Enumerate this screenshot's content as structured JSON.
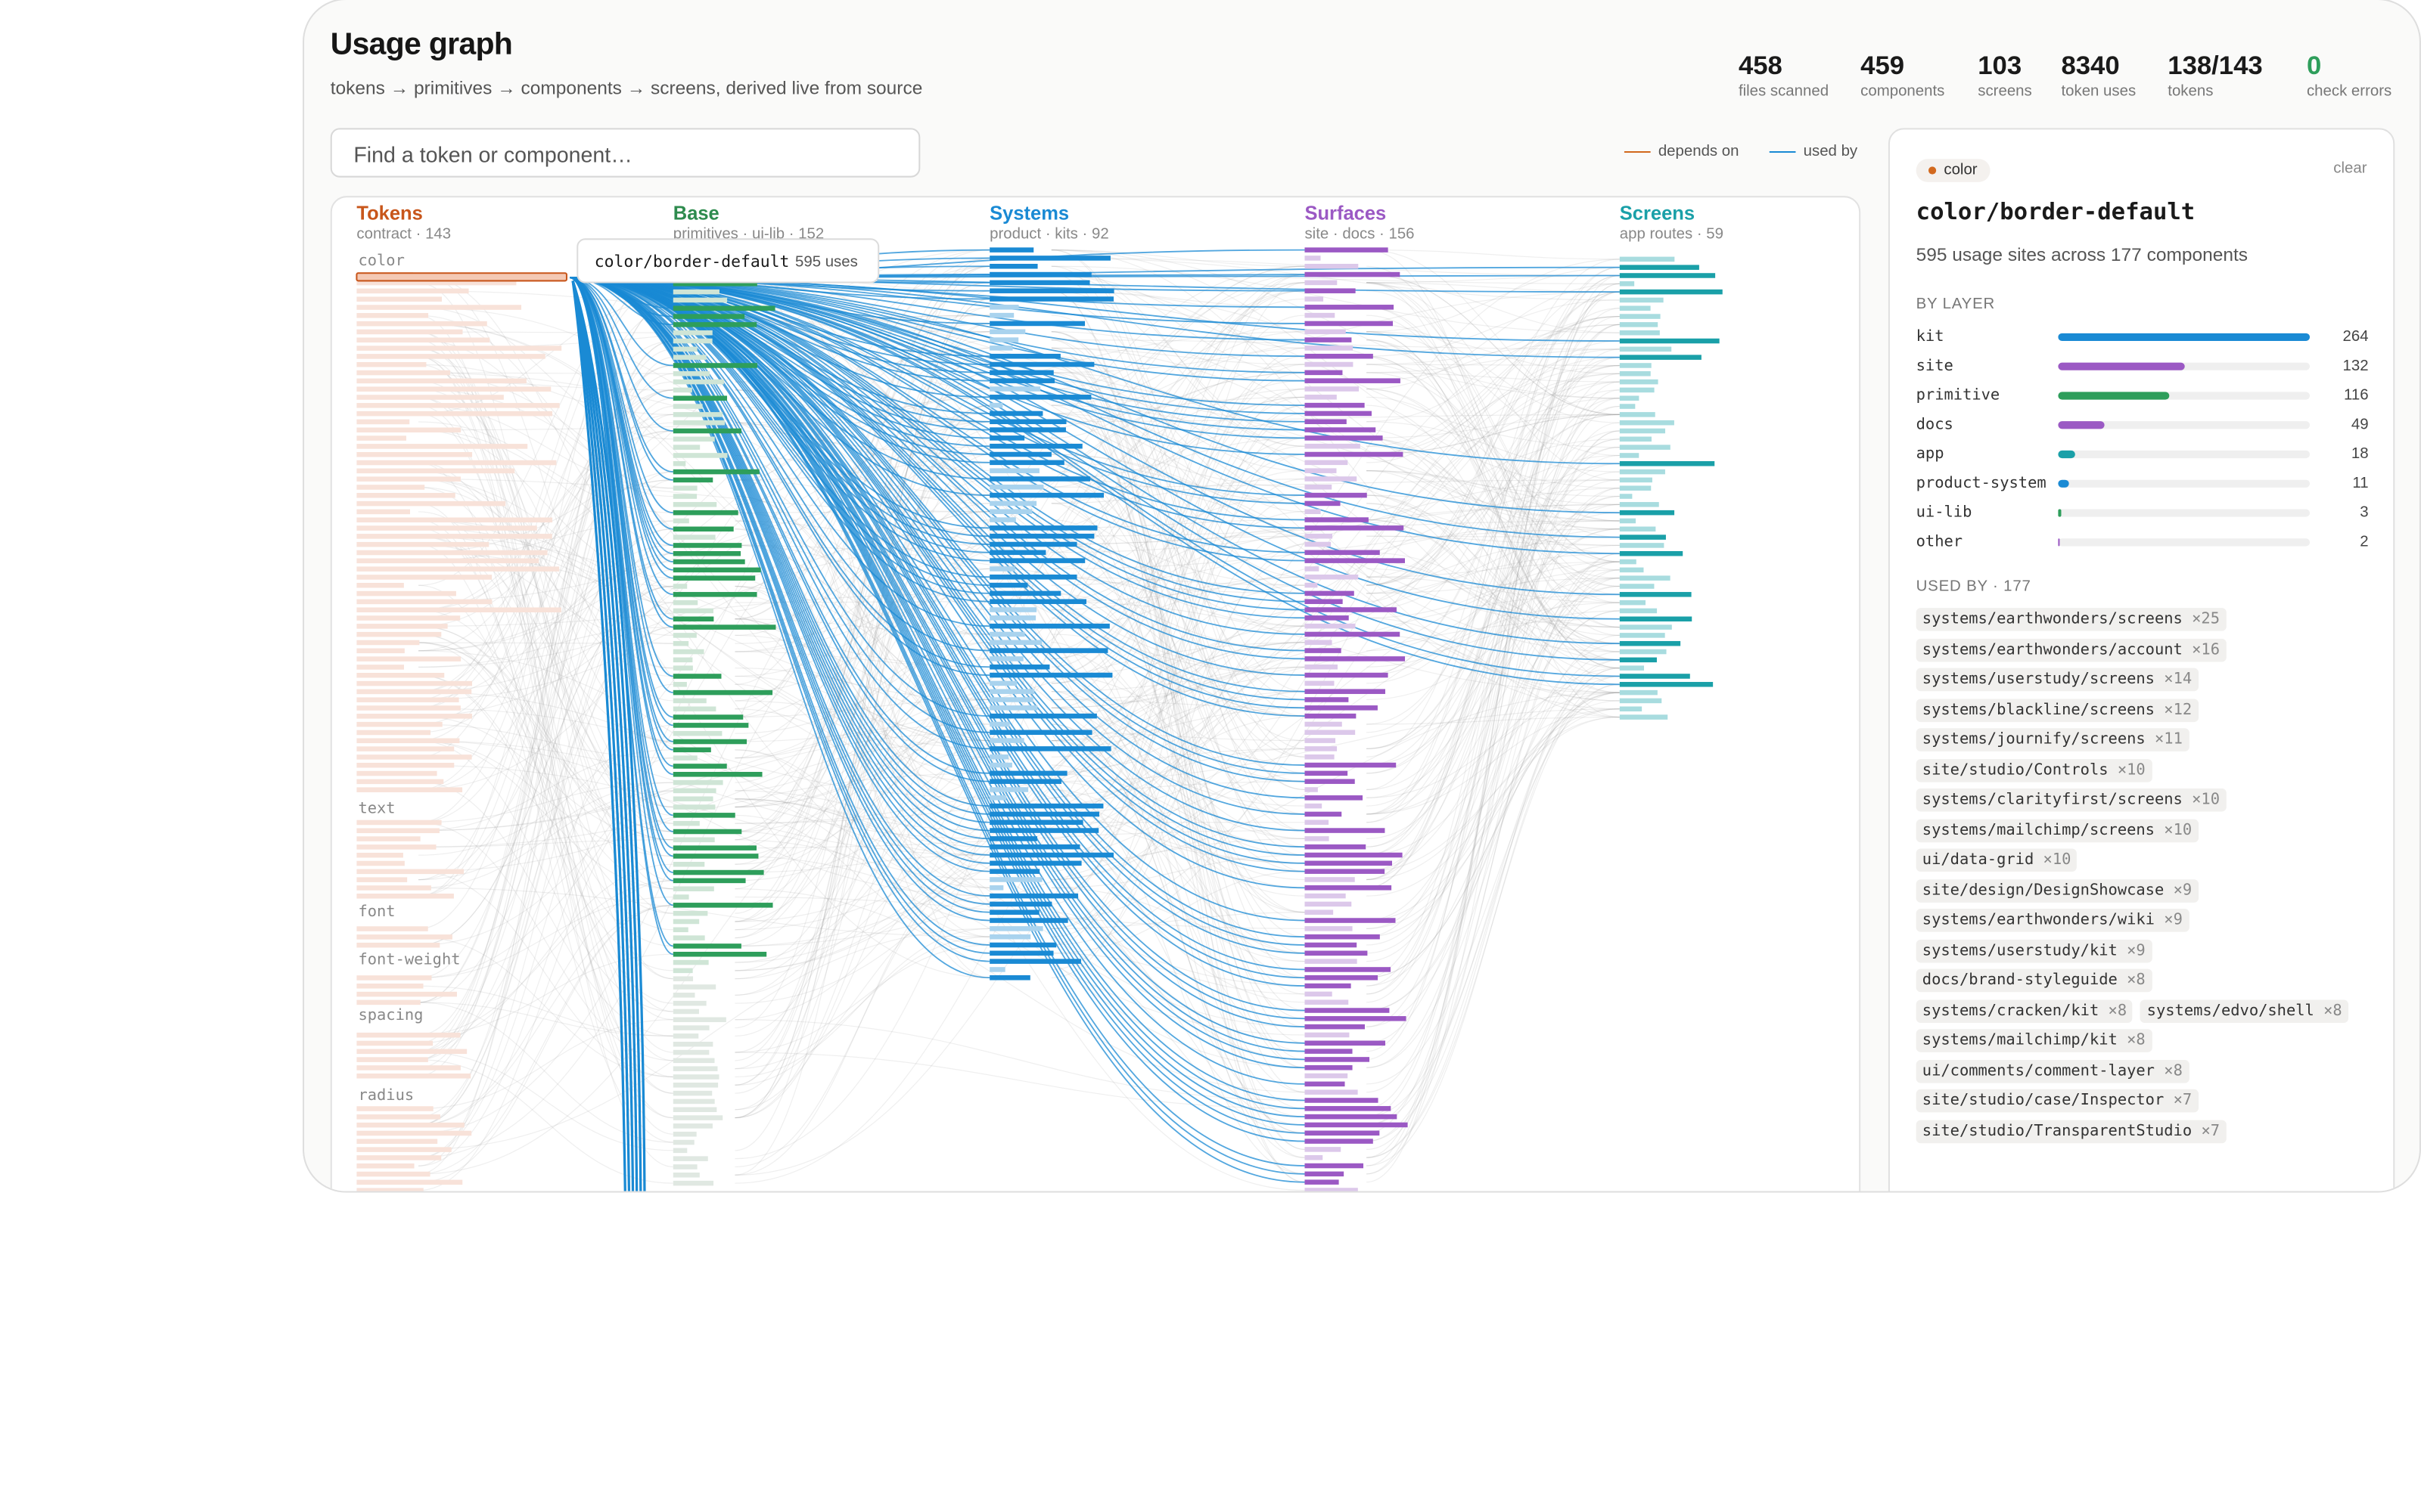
{
  "header": {
    "title": "Usage graph",
    "subtitle": "tokens → primitives → components → screens, derived live from source"
  },
  "stats": [
    {
      "value": 458,
      "label": "files scanned"
    },
    {
      "value": 459,
      "label": "components"
    },
    {
      "value": 103,
      "label": "screens"
    },
    {
      "value": 8340,
      "label": "token uses"
    },
    {
      "value": "138/143",
      "label": "tokens"
    },
    {
      "value": 0,
      "label": "check errors",
      "color": "#2e9e5b"
    }
  ],
  "search": {
    "placeholder": "Find a token or component…"
  },
  "legend": [
    {
      "label": "depends on",
      "color": "#d2691e"
    },
    {
      "label": "used by",
      "color": "#1a8ad4"
    }
  ],
  "columns": [
    {
      "name": "Tokens",
      "subtitle": "contract · 143",
      "color": "#c8561b"
    },
    {
      "name": "Base",
      "subtitle": "primitives · ui-lib · 152",
      "color": "#2e8b4e"
    },
    {
      "name": "Systems",
      "subtitle": "product · kits · 92",
      "color": "#1a8ad4"
    },
    {
      "name": "Surfaces",
      "subtitle": "site · docs · 156",
      "color": "#9b59c4"
    },
    {
      "name": "Screens",
      "subtitle": "app routes · 59",
      "color": "#1aa0a8"
    }
  ],
  "token_groups": [
    "color",
    "text",
    "font",
    "font-weight",
    "spacing",
    "radius"
  ],
  "tooltip": {
    "name": "color/border-default",
    "uses": "595 uses"
  },
  "panel": {
    "chip": "color",
    "clear": "clear",
    "title": "color/border-default",
    "summary": "595 usage sites across 177 components",
    "by_layer_heading": "BY LAYER",
    "layers": [
      {
        "name": "kit",
        "value": 264,
        "color": "#1a8ad4"
      },
      {
        "name": "site",
        "value": 132,
        "color": "#9b59c4"
      },
      {
        "name": "primitive",
        "value": 116,
        "color": "#2e9e5b"
      },
      {
        "name": "docs",
        "value": 49,
        "color": "#9b59c4"
      },
      {
        "name": "app",
        "value": 18,
        "color": "#1aa0a8"
      },
      {
        "name": "product-system",
        "value": 11,
        "color": "#1a8ad4"
      },
      {
        "name": "ui-lib",
        "value": 3,
        "color": "#2e9e5b"
      },
      {
        "name": "other",
        "value": 2,
        "color": "#9b59c4"
      }
    ],
    "used_by_heading": "USED BY · 177",
    "used_by": [
      {
        "name": "systems/earthwonders/screens",
        "count": "×25"
      },
      {
        "name": "systems/earthwonders/account",
        "count": "×16"
      },
      {
        "name": "systems/userstudy/screens",
        "count": "×14"
      },
      {
        "name": "systems/blackline/screens",
        "count": "×12"
      },
      {
        "name": "systems/journify/screens",
        "count": "×11"
      },
      {
        "name": "site/studio/Controls",
        "count": "×10"
      },
      {
        "name": "systems/clarityfirst/screens",
        "count": "×10"
      },
      {
        "name": "systems/mailchimp/screens",
        "count": "×10"
      },
      {
        "name": "ui/data-grid",
        "count": "×10"
      },
      {
        "name": "site/design/DesignShowcase",
        "count": "×9"
      },
      {
        "name": "systems/earthwonders/wiki",
        "count": "×9"
      },
      {
        "name": "systems/userstudy/kit",
        "count": "×9"
      },
      {
        "name": "docs/brand-styleguide",
        "count": "×8"
      },
      {
        "name": "systems/cracken/kit",
        "count": "×8"
      },
      {
        "name": "systems/edvo/shell",
        "count": "×8"
      },
      {
        "name": "systems/mailchimp/kit",
        "count": "×8"
      },
      {
        "name": "ui/comments/comment-layer",
        "count": "×8"
      },
      {
        "name": "site/studio/case/Inspector",
        "count": "×7"
      },
      {
        "name": "site/studio/TransparentStudio",
        "count": "×7"
      }
    ]
  }
}
